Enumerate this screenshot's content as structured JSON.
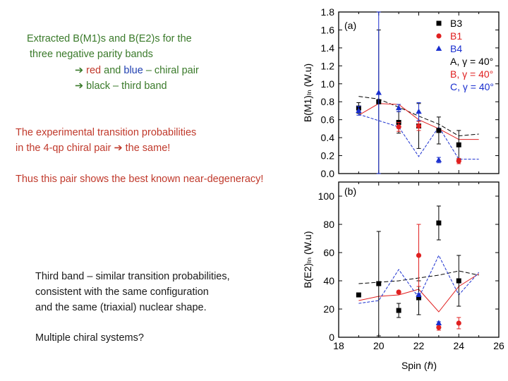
{
  "text": {
    "intro_line1": "Extracted B(M1)s and B(E2)s for the",
    "intro_line2": "three negative parity bands",
    "arrow": "➔",
    "pair_red": "red",
    "pair_and": "and",
    "pair_blue": "blue",
    "pair_rest": "– chiral pair",
    "third_band": "black – third band",
    "exp_line1": "The experimental transition probabilities",
    "exp_line2a": "in the 4-qp chiral pair",
    "exp_line2b": "the same!",
    "degeneracy": "Thus this pair shows the best known near-degeneracy!",
    "third_line1": "Third band – similar transition probabilities,",
    "third_line2": "consistent with the same configuration",
    "third_line3": "and the same (triaxial) nuclear shape.",
    "question": "Multiple chiral systems?"
  },
  "colors": {
    "black": "#000000",
    "red": "#e02020",
    "blue": "#1a2fcf",
    "green": "#3a7a2a"
  },
  "chart_data": [
    {
      "type": "scatter",
      "panel_label": "(a)",
      "ylabel": "B(M1)ₗₙ (W.u)",
      "xlim": [
        18,
        26
      ],
      "ylim": [
        0,
        1.8
      ],
      "yticks": [
        0.0,
        0.2,
        0.4,
        0.6,
        0.8,
        1.0,
        1.2,
        1.4,
        1.6,
        1.8
      ],
      "legend": [
        {
          "label": "B3",
          "color": "#000000",
          "marker": "square"
        },
        {
          "label": "B1",
          "color": "#e02020",
          "marker": "circle"
        },
        {
          "label": "B4",
          "color": "#1a2fcf",
          "marker": "triangle"
        },
        {
          "label": "A, γ = 40°",
          "color": "#000000",
          "marker": "none"
        },
        {
          "label": "B, γ = 40°",
          "color": "#e02020",
          "marker": "none"
        },
        {
          "label": "C, γ = 40°",
          "color": "#1a2fcf",
          "marker": "none"
        }
      ],
      "series": [
        {
          "name": "B3",
          "color": "#000000",
          "marker": "square",
          "x": [
            19,
            20,
            21,
            22,
            23,
            24
          ],
          "y": [
            0.73,
            0.8,
            0.57,
            0.53,
            0.48,
            0.32
          ],
          "err": [
            0.06,
            0.8,
            0.12,
            0.25,
            0.15,
            0.16
          ]
        },
        {
          "name": "B1",
          "color": "#e02020",
          "marker": "circle",
          "x": [
            21,
            22,
            24
          ],
          "y": [
            0.52,
            0.53,
            0.14
          ],
          "err": [
            0.05,
            0.05,
            0.03
          ]
        },
        {
          "name": "B4",
          "color": "#1a2fcf",
          "marker": "triangle",
          "x": [
            19,
            20,
            21,
            22,
            23
          ],
          "y": [
            0.7,
            0.9,
            0.73,
            0.69,
            0.15
          ],
          "err": [
            0.05,
            0.9,
            0.04,
            0.1,
            0.03
          ]
        }
      ],
      "theory": [
        {
          "name": "A, γ = 40°",
          "color": "#000000",
          "x": [
            19,
            20,
            21,
            22,
            23,
            24,
            25
          ],
          "y": [
            0.86,
            0.83,
            0.74,
            0.64,
            0.55,
            0.42,
            0.44
          ]
        },
        {
          "name": "B, γ = 40°",
          "color": "#e02020",
          "x": [
            19,
            20,
            21,
            22,
            23,
            24,
            25
          ],
          "y": [
            0.65,
            0.78,
            0.77,
            0.6,
            0.5,
            0.38,
            0.38
          ]
        },
        {
          "name": "C, γ = 40°",
          "color": "#1a2fcf",
          "x": [
            19,
            20,
            21,
            22,
            23,
            24,
            25
          ],
          "y": [
            0.66,
            0.59,
            0.52,
            0.19,
            0.52,
            0.16,
            0.16
          ]
        }
      ]
    },
    {
      "type": "scatter",
      "panel_label": "(b)",
      "ylabel": "B(E2)ₗₙ (W.u)",
      "xlabel": "Spin (ℏ)",
      "xlim": [
        18,
        26
      ],
      "ylim": [
        0,
        110
      ],
      "xticks": [
        18,
        20,
        22,
        24,
        26
      ],
      "yticks": [
        0,
        20,
        40,
        60,
        80,
        100
      ],
      "series": [
        {
          "name": "B3",
          "color": "#000000",
          "marker": "square",
          "x": [
            19,
            20,
            21,
            22,
            23,
            24
          ],
          "y": [
            30,
            38,
            19,
            28,
            81,
            40
          ],
          "err": [
            1,
            37,
            5,
            12,
            12,
            18
          ]
        },
        {
          "name": "B1",
          "color": "#e02020",
          "marker": "circle",
          "x": [
            21,
            22,
            23,
            24
          ],
          "y": [
            32,
            58,
            7,
            10
          ],
          "err": [
            1,
            22,
            2,
            4
          ]
        },
        {
          "name": "B4",
          "color": "#1a2fcf",
          "marker": "triangle",
          "x": [
            22,
            23
          ],
          "y": [
            30,
            10
          ],
          "err": [
            1,
            1
          ]
        }
      ],
      "theory": [
        {
          "name": "A, γ = 40°",
          "color": "#000000",
          "x": [
            19,
            20,
            21,
            22,
            23,
            24,
            25
          ],
          "y": [
            38,
            39,
            40,
            42,
            44,
            47,
            44
          ]
        },
        {
          "name": "B, γ = 40°",
          "color": "#e02020",
          "x": [
            19,
            20,
            21,
            22,
            23,
            24,
            25
          ],
          "y": [
            26,
            29,
            30,
            34,
            18,
            36,
            45
          ]
        },
        {
          "name": "C, γ = 40°",
          "color": "#1a2fcf",
          "x": [
            19,
            20,
            21,
            22,
            23,
            24,
            25
          ],
          "y": [
            24,
            26,
            48,
            28,
            58,
            30,
            46
          ]
        }
      ]
    }
  ]
}
